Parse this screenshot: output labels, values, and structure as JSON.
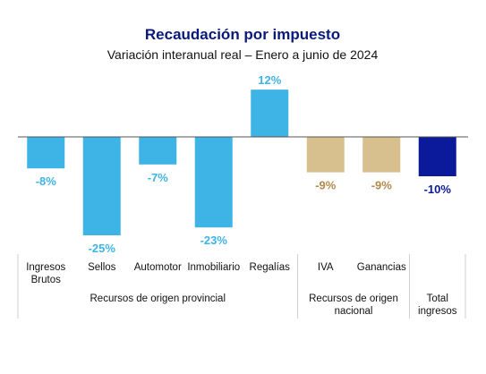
{
  "chart_data": {
    "type": "bar",
    "title": "Recaudación por impuesto",
    "subtitle": "Variación interanual real – Enero a junio de 2024",
    "categories": [
      [
        "Ingresos",
        "Brutos"
      ],
      [
        "Sellos"
      ],
      [
        "Automotor"
      ],
      [
        "Inmobiliario"
      ],
      [
        "Regalías"
      ],
      [
        "IVA"
      ],
      [
        "Ganancias"
      ],
      []
    ],
    "values": [
      -8,
      -25,
      -7,
      -23,
      12,
      -9,
      -9,
      -10
    ],
    "value_labels": [
      "-8%",
      "-25%",
      "-7%",
      "-23%",
      "12%",
      "-9%",
      "-9%",
      "-10%"
    ],
    "bar_colors": [
      "#3db4e5",
      "#3db4e5",
      "#3db4e5",
      "#3db4e5",
      "#3db4e5",
      "#d8bf8e",
      "#d8bf8e",
      "#0a1a9a"
    ],
    "label_colors": [
      "#3db4e5",
      "#3db4e5",
      "#3db4e5",
      "#3db4e5",
      "#3db4e5",
      "#b18a4a",
      "#b18a4a",
      "#0a1a9a"
    ],
    "groups": [
      {
        "lines": [
          "Recursos de origen provincial"
        ],
        "from": 0,
        "to": 4
      },
      {
        "lines": [
          "Recursos de origen",
          "nacional"
        ],
        "from": 5,
        "to": 6
      },
      {
        "lines": [
          "Total",
          "ingresos"
        ],
        "from": 7,
        "to": 7
      }
    ],
    "ylim": [
      -25,
      12
    ],
    "grid": false,
    "legend": "none"
  },
  "colors": {
    "title": "#0a1a7a",
    "text": "#111111",
    "axis": "#555555",
    "divider": "#cfcfcf"
  }
}
